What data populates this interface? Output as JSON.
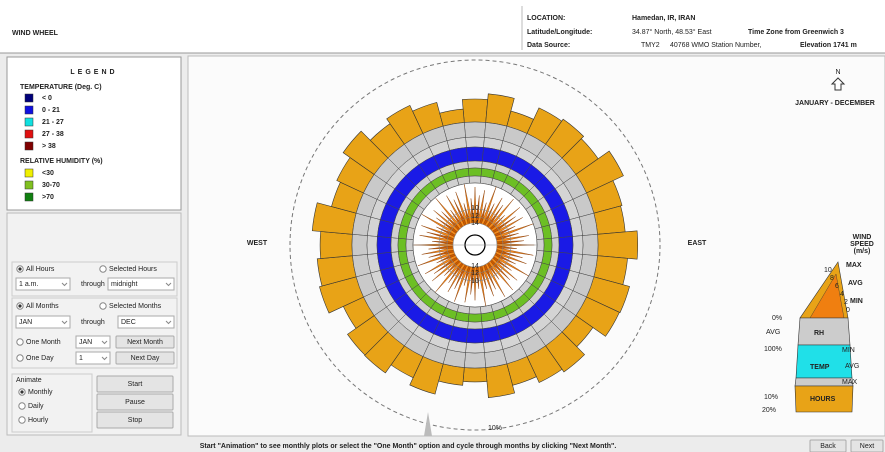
{
  "header": {
    "title": "WIND WHEEL",
    "location_label": "LOCATION:",
    "location": "Hamedan, IR, IRAN",
    "latlon_label": "Latitude/Longitude:",
    "latlon": "34.87° North, 48.53° East",
    "timezone": "Time Zone from Greenwich 3",
    "source_label": "Data Source:",
    "source": "TMY2",
    "station": "40768 WMO Station Number,",
    "elevation": "Elevation 1741 m"
  },
  "legend": {
    "title": "LEGEND",
    "temperature": {
      "title": "TEMPERATURE (Deg. C)",
      "items": [
        {
          "label": "< 0",
          "color": "#00007a"
        },
        {
          "label": "0  -  21",
          "color": "#1010e0"
        },
        {
          "label": "21  -  27",
          "color": "#10e0e0"
        },
        {
          "label": "27  -  38",
          "color": "#e01010"
        },
        {
          "label": "> 38",
          "color": "#800000"
        }
      ]
    },
    "humidity": {
      "title": "RELATIVE HUMIDITY (%)",
      "items": [
        {
          "label": "<30",
          "color": "#f0f000"
        },
        {
          "label": "30-70",
          "color": "#80c020"
        },
        {
          "label": ">70",
          "color": "#108010"
        }
      ]
    }
  },
  "controls": {
    "all_hours": "All Hours",
    "selected_hours": "Selected Hours",
    "hour_from": "1 a.m.",
    "through_1": "through",
    "hour_to": "midnight",
    "all_months": "All Months",
    "selected_months": "Selected Months",
    "month_from": "JAN",
    "through_2": "through",
    "month_to": "DEC",
    "one_month": "One Month",
    "one_month_value": "JAN",
    "next_month": "Next Month",
    "one_day": "One Day",
    "one_day_value": "1",
    "next_day": "Next Day",
    "animate": "Animate",
    "monthly": "Monthly",
    "daily": "Daily",
    "hourly": "Hourly",
    "start": "Start",
    "pause": "Pause",
    "stop": "Stop"
  },
  "wheel": {
    "north": "N",
    "period": "JANUARY - DECEMBER",
    "west": "WEST",
    "east": "EAST",
    "ring_label": "10%",
    "speed_labels": [
      "10",
      "12",
      "14",
      "14",
      "12",
      "10"
    ]
  },
  "key": {
    "title": [
      "WIND",
      "SPEED",
      "(m/s)"
    ],
    "speeds": [
      "10",
      "8",
      "6",
      "4",
      "2",
      "0"
    ],
    "speed_max": "MAX",
    "speed_avg": "AVG",
    "speed_min": "MIN",
    "rh_low": "0%",
    "rh_avg": "AVG",
    "rh": "RH",
    "rh_high": "100%",
    "temp_min": "MIN",
    "temp": "TEMP",
    "temp_avg": "AVG",
    "temp_max": "MAX",
    "hours_10": "10%",
    "hours": "HOURS",
    "hours_20": "20%"
  },
  "footer": {
    "message": "Start \"Animation\" to see monthly plots or select the \"One Month\" option and cycle through months by clicking \"Next Month\".",
    "back": "Back",
    "next": "Next"
  }
}
